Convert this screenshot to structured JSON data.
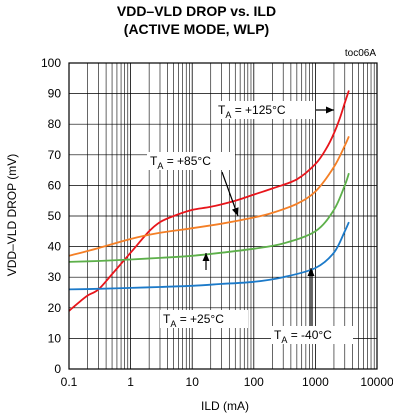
{
  "chart_data": {
    "type": "line",
    "title": "VDD–VLD DROP vs. ILD",
    "subtitle": "(ACTIVE MODE, WLP)",
    "figure_code": "toc06A",
    "xlabel": "ILD (mA)",
    "ylabel": "VDD–VLD DROP (mV)",
    "xscale": "log",
    "xlim": [
      0.1,
      10000
    ],
    "ylim": [
      0,
      100
    ],
    "xticks": [
      "0.1",
      "1",
      "10",
      "100",
      "1000",
      "10000"
    ],
    "yticks": [
      "0",
      "10",
      "20",
      "30",
      "40",
      "50",
      "60",
      "70",
      "80",
      "90",
      "100"
    ],
    "grid": true,
    "legend": "none",
    "series": [
      {
        "name": "TA = +125°C",
        "color": "#e8151b",
        "x": [
          0.1,
          0.15,
          0.2,
          0.3,
          0.5,
          1,
          2,
          3,
          5,
          10,
          20,
          50,
          100,
          200,
          500,
          1000,
          1500,
          2000,
          2500,
          3000,
          3500
        ],
        "y": [
          19,
          22,
          24,
          26,
          31,
          38,
          45,
          48,
          50,
          52,
          53,
          55,
          57,
          59,
          62,
          67,
          72,
          77,
          82,
          87,
          91
        ]
      },
      {
        "name": "TA = +85°C",
        "color": "#f47f26",
        "x": [
          0.1,
          0.3,
          1,
          3,
          10,
          30,
          100,
          200,
          500,
          1000,
          2000,
          3000,
          3500
        ],
        "y": [
          37,
          39.5,
          42.5,
          44.5,
          46,
          47.5,
          49.5,
          51,
          54,
          58,
          66,
          73,
          76
        ]
      },
      {
        "name": "TA = +25°C",
        "color": "#5db04a",
        "x": [
          0.1,
          0.3,
          1,
          3,
          10,
          30,
          100,
          300,
          1000,
          2000,
          3000,
          3500
        ],
        "y": [
          35,
          35.3,
          35.8,
          36.3,
          37,
          38,
          39.3,
          41,
          45,
          52,
          60,
          64
        ]
      },
      {
        "name": "TA = -40°C",
        "color": "#1c7ac9",
        "x": [
          0.1,
          0.3,
          1,
          3,
          10,
          30,
          100,
          300,
          1000,
          2000,
          3000,
          3500
        ],
        "y": [
          26,
          26.2,
          26.5,
          26.8,
          27.2,
          27.8,
          28.5,
          30,
          33,
          38,
          45,
          48
        ]
      }
    ],
    "annotations": [
      {
        "label": "T",
        "sub": "A",
        "rest": " = +125°C",
        "series": 0
      },
      {
        "label": "T",
        "sub": "A",
        "rest": " = +85°C",
        "series": 1
      },
      {
        "label": "T",
        "sub": "A",
        "rest": " = +25°C",
        "series": 2
      },
      {
        "label": "T",
        "sub": "A",
        "rest": " = -40°C",
        "series": 3
      }
    ]
  }
}
